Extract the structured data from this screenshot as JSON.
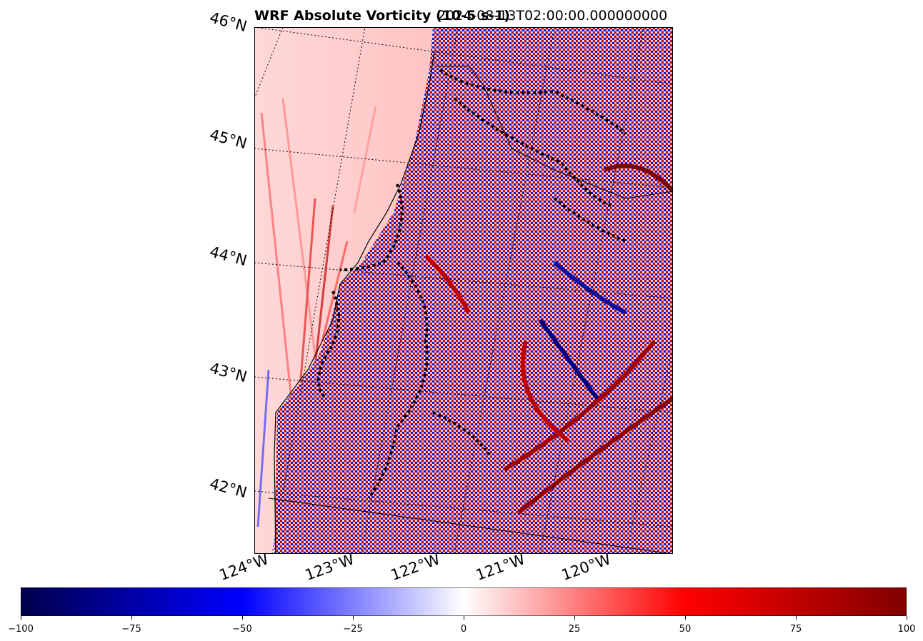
{
  "title": {
    "left": "WRF Absolute Vorticity (10-5 s-1)",
    "right": "2024-08-13T02:00:00.000000000"
  },
  "map": {
    "lat_labels": [
      "46°N",
      "45°N",
      "44°N",
      "43°N",
      "42°N"
    ],
    "lon_labels": [
      "124°W",
      "123°W",
      "122°W",
      "121°W",
      "120°W"
    ],
    "field": "absolute vorticity",
    "colormap": "seismic",
    "colors": {
      "negative_max": "#00004c",
      "negative": "#0000ff",
      "zero": "#ffffff",
      "positive": "#ff0000",
      "positive_max": "#800000"
    }
  },
  "colorbar": {
    "min": -100,
    "max": 100,
    "ticks": [
      "−100",
      "−75",
      "−50",
      "−25",
      "0",
      "25",
      "50",
      "75",
      "100"
    ]
  }
}
